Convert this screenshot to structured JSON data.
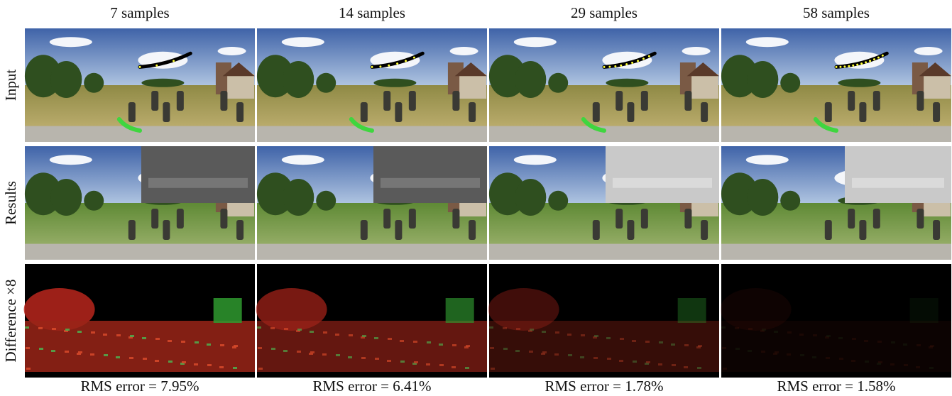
{
  "columns": [
    {
      "title": "7 samples",
      "caption": "RMS error = 7.95%"
    },
    {
      "title": "14 samples",
      "caption": "RMS error = 6.41%"
    },
    {
      "title": "29 samples",
      "caption": "RMS error = 1.78%"
    },
    {
      "title": "58 samples",
      "caption": "RMS error = 1.58%"
    }
  ],
  "rows": [
    "Input",
    "Results",
    "Difference ×8"
  ]
}
